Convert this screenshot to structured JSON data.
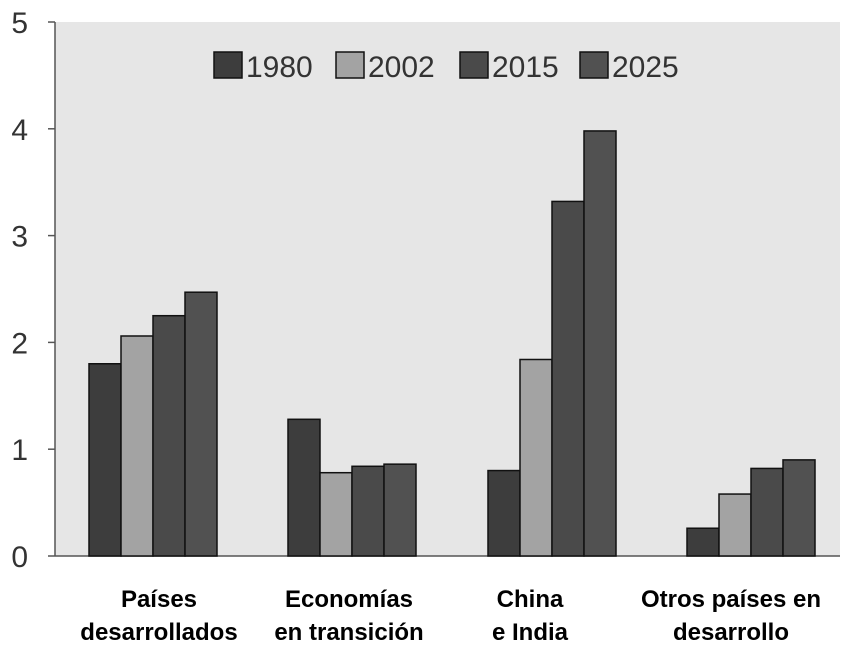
{
  "chart_data": {
    "type": "bar",
    "title": "",
    "xlabel": "",
    "ylabel": "",
    "ylim": [
      0,
      5
    ],
    "yticks": [
      "0",
      "1",
      "2",
      "3",
      "4",
      "5"
    ],
    "grid": false,
    "legend_position": "top",
    "categories": [
      [
        "Países",
        "desarrollados"
      ],
      [
        "Economías",
        "en transición"
      ],
      [
        "China",
        "e India"
      ],
      [
        "Otros países en",
        "desarrollo"
      ]
    ],
    "series": [
      {
        "name": "1980",
        "values": [
          1.8,
          1.28,
          0.8,
          0.26
        ],
        "color": "#3d3d3d"
      },
      {
        "name": "2002",
        "values": [
          2.06,
          0.78,
          1.84,
          0.58
        ],
        "color": "#a3a3a3"
      },
      {
        "name": "2015",
        "values": [
          2.25,
          0.84,
          3.32,
          0.82
        ],
        "color": "#4a4a4a"
      },
      {
        "name": "2025",
        "values": [
          2.47,
          0.86,
          3.98,
          0.9
        ],
        "color": "#515151"
      }
    ],
    "plot_background": "#e6e6e6"
  }
}
